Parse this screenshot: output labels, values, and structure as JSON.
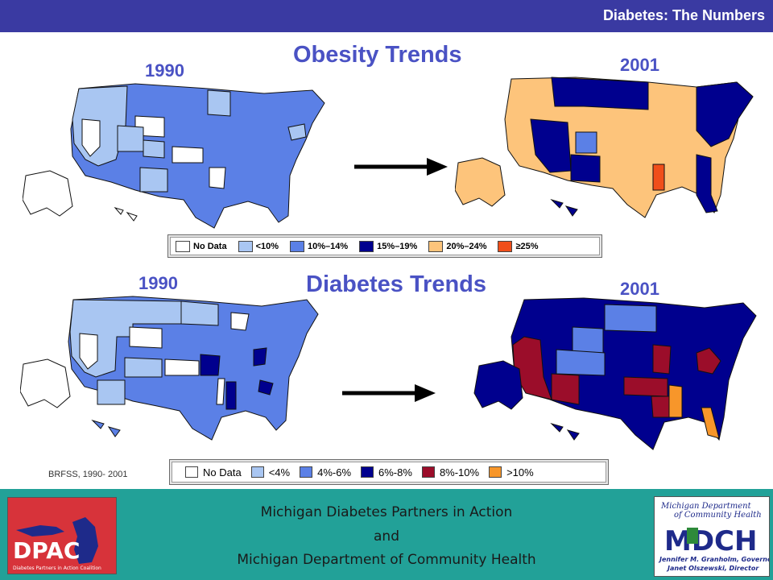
{
  "header": {
    "title": "Diabetes: The Numbers"
  },
  "colors": {
    "header_bg": "#3a3aa2",
    "footer_bg": "#22a198",
    "title_text": "#4a52c4",
    "no_data": "#ffffff",
    "lt10": "#a9c6f2",
    "10_14": "#5b80e6",
    "15_19": "#00008e",
    "20_24": "#fdc47b",
    "ge25": "#f04e1a",
    "diab_lt4": "#a9c6f2",
    "diab_4_6": "#5b80e6",
    "diab_6_8": "#00008e",
    "diab_8_10": "#9b0d2a",
    "diab_gt10": "#f7962a"
  },
  "obesity": {
    "title": "Obesity Trends",
    "year_left": "1990",
    "year_right": "2001",
    "legend": [
      "No Data",
      "<10%",
      "10%–14%",
      "15%–19%",
      "20%–24%",
      "≥25%"
    ]
  },
  "diabetes": {
    "title": "Diabetes Trends",
    "year_left": "1990",
    "year_right": "2001",
    "legend": [
      "No Data",
      "<4%",
      "4%-6%",
      "6%-8%",
      "8%-10%",
      ">10%"
    ]
  },
  "source": "BRFSS, 1990- 2001",
  "footer": {
    "line1": "Michigan Diabetes Partners in Action",
    "line2": "and",
    "line3": "Michigan Department of Community Health",
    "left_logo": {
      "text": "DPAC",
      "tagline": "Diabetes Partners in Action Coalition"
    },
    "right_logo": {
      "title1": "Michigan Department",
      "title2": "of Community Health",
      "mark": "MDCH",
      "line1": "Jennifer M. Granholm, Governor",
      "line2": "Janet Olszewski, Director"
    }
  },
  "icons": {
    "arrow_top": "right-arrow-icon",
    "arrow_bottom": "right-arrow-icon",
    "map": "us-map-icon"
  }
}
